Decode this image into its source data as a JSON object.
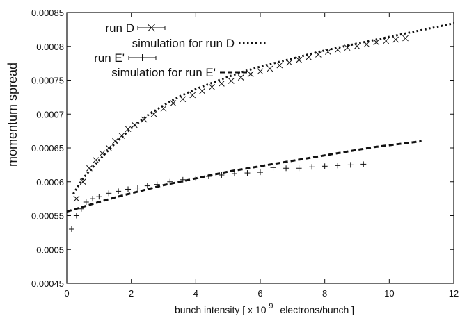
{
  "chart_data": {
    "type": "scatter",
    "xlabel": "bunch intensity [ x 10",
    "xlabel_exponent": "9",
    "xlabel_suffix": "electrons/bunch ]",
    "ylabel": "momentum spread",
    "xlim": [
      0,
      12
    ],
    "ylim": [
      0.00045,
      0.00085
    ],
    "x_ticks": [
      0,
      2,
      4,
      6,
      8,
      10,
      12
    ],
    "y_ticks": [
      0.00045,
      0.0005,
      0.00055,
      0.0006,
      0.00065,
      0.0007,
      0.00075,
      0.0008,
      0.00085
    ],
    "y_tick_labels": [
      "0.00045",
      "0.0005",
      "0.00055",
      "0.0006",
      "0.00065",
      "0.0007",
      "0.00075",
      "0.0008",
      "0.00085"
    ],
    "grid": false,
    "legend_position": "top-left",
    "series": [
      {
        "name": "run D",
        "kind": "points",
        "marker": "x",
        "x": [
          0.3,
          0.5,
          0.7,
          0.9,
          1.1,
          1.3,
          1.5,
          1.7,
          1.9,
          2.1,
          2.4,
          2.7,
          3.0,
          3.3,
          3.6,
          3.9,
          4.2,
          4.5,
          4.8,
          5.1,
          5.4,
          5.7,
          6.0,
          6.3,
          6.6,
          6.9,
          7.2,
          7.5,
          7.8,
          8.1,
          8.4,
          8.7,
          9.0,
          9.3,
          9.6,
          9.9,
          10.2,
          10.5
        ],
        "y": [
          0.000575,
          0.0006,
          0.00062,
          0.000632,
          0.000642,
          0.00065,
          0.00066,
          0.000668,
          0.000678,
          0.000684,
          0.000692,
          0.0007,
          0.000708,
          0.000716,
          0.000722,
          0.000728,
          0.000734,
          0.00074,
          0.000745,
          0.000749,
          0.000754,
          0.000759,
          0.000763,
          0.000767,
          0.000772,
          0.000776,
          0.00078,
          0.000784,
          0.000788,
          0.000792,
          0.000795,
          0.000798,
          0.0008,
          0.000803,
          0.000806,
          0.000808,
          0.00081,
          0.000812
        ]
      },
      {
        "name": "simulation for run D",
        "kind": "dotted",
        "x": [
          0.2,
          0.5,
          1.0,
          1.5,
          2.0,
          2.5,
          3.0,
          3.5,
          4.0,
          4.5,
          5.0,
          5.5,
          6.0,
          6.5,
          7.0,
          7.5,
          8.0,
          8.5,
          9.0,
          9.5,
          10.0,
          10.5,
          11.0,
          11.5,
          12.0
        ],
        "y": [
          0.000582,
          0.000605,
          0.000632,
          0.000657,
          0.000679,
          0.000698,
          0.000713,
          0.000726,
          0.000737,
          0.000746,
          0.000755,
          0.000763,
          0.00077,
          0.000776,
          0.000782,
          0.000788,
          0.000794,
          0.000799,
          0.000804,
          0.000809,
          0.000814,
          0.000819,
          0.000824,
          0.000829,
          0.000834
        ]
      },
      {
        "name": "run E'",
        "kind": "points",
        "marker": "+",
        "x": [
          0.15,
          0.3,
          0.45,
          0.6,
          0.8,
          1.0,
          1.3,
          1.6,
          1.9,
          2.2,
          2.5,
          2.8,
          3.2,
          3.6,
          4.0,
          4.4,
          4.8,
          5.2,
          5.6,
          6.0,
          6.4,
          6.8,
          7.2,
          7.6,
          8.0,
          8.4,
          8.8,
          9.2
        ],
        "y": [
          0.00053,
          0.00055,
          0.00056,
          0.00057,
          0.000575,
          0.000578,
          0.000583,
          0.000586,
          0.000589,
          0.000591,
          0.000594,
          0.000596,
          0.0006,
          0.000603,
          0.000605,
          0.000608,
          0.00061,
          0.000612,
          0.000613,
          0.000614,
          0.000621,
          0.00062,
          0.00062,
          0.000622,
          0.000623,
          0.000624,
          0.000625,
          0.000626
        ]
      },
      {
        "name": "simulation for run E'",
        "kind": "dashed",
        "x": [
          0.0,
          0.5,
          1.0,
          1.5,
          2.0,
          2.5,
          3.0,
          3.5,
          4.0,
          4.5,
          5.0,
          5.5,
          6.0,
          6.5,
          7.0,
          7.5,
          8.0,
          8.5,
          9.0,
          9.5,
          10.0,
          10.5,
          11.0
        ],
        "y": [
          0.000556,
          0.000563,
          0.00057,
          0.000577,
          0.000583,
          0.000589,
          0.000595,
          0.0006,
          0.000605,
          0.00061,
          0.000615,
          0.000619,
          0.000623,
          0.000627,
          0.000631,
          0.000635,
          0.000639,
          0.000643,
          0.000647,
          0.000651,
          0.000654,
          0.000657,
          0.00066
        ]
      }
    ]
  }
}
